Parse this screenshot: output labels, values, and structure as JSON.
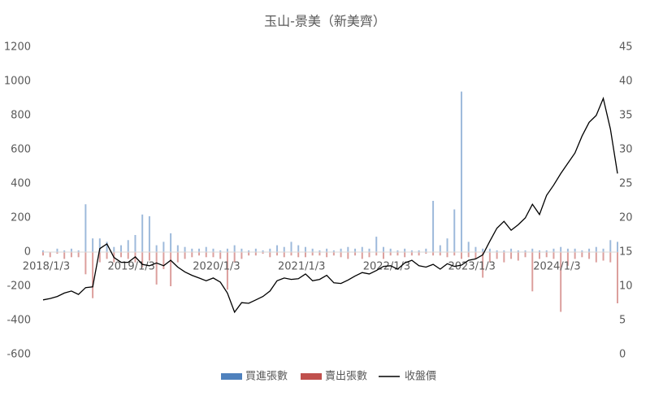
{
  "chart_data": {
    "type": "bar",
    "title": "玉山-景美（新美齊）",
    "categories": [
      "2018/1/3",
      null,
      null,
      null,
      null,
      null,
      null,
      null,
      null,
      null,
      null,
      null,
      "2019/1/3",
      null,
      null,
      null,
      null,
      null,
      null,
      null,
      null,
      null,
      null,
      null,
      "2020/1/3",
      null,
      null,
      null,
      null,
      null,
      null,
      null,
      null,
      null,
      null,
      null,
      "2021/1/3",
      null,
      null,
      null,
      null,
      null,
      null,
      null,
      null,
      null,
      null,
      null,
      "2022/1/3",
      null,
      null,
      null,
      null,
      null,
      null,
      null,
      null,
      null,
      null,
      null,
      "2023/1/3",
      null,
      null,
      null,
      null,
      null,
      null,
      null,
      null,
      null,
      null,
      null,
      "2024/1/3",
      null,
      null,
      null,
      null,
      null,
      null,
      null,
      null,
      null
    ],
    "series": [
      {
        "name": "買進張數",
        "color": "#4f81bd",
        "type": "bar",
        "values": [
          10,
          0,
          20,
          10,
          20,
          10,
          280,
          80,
          80,
          60,
          30,
          40,
          70,
          100,
          220,
          210,
          40,
          60,
          110,
          40,
          30,
          20,
          20,
          30,
          20,
          10,
          20,
          40,
          20,
          10,
          20,
          10,
          20,
          40,
          30,
          60,
          40,
          30,
          20,
          10,
          20,
          10,
          20,
          30,
          20,
          30,
          20,
          90,
          30,
          20,
          10,
          20,
          10,
          10,
          20,
          300,
          40,
          80,
          250,
          940,
          60,
          30,
          20,
          20,
          10,
          10,
          20,
          10,
          10,
          20,
          10,
          10,
          20,
          30,
          20,
          20,
          10,
          20,
          30,
          20,
          70,
          60
        ]
      },
      {
        "name": "賣出張數",
        "color": "#c0504d",
        "type": "bar",
        "values": [
          -20,
          -30,
          -10,
          -40,
          -30,
          -30,
          -130,
          -270,
          -60,
          -40,
          -60,
          -30,
          -40,
          -60,
          -90,
          -50,
          -190,
          -100,
          -200,
          -60,
          -40,
          -30,
          -20,
          -30,
          -30,
          -40,
          -220,
          -60,
          -40,
          -20,
          -20,
          -10,
          -30,
          -20,
          -30,
          -20,
          -30,
          -30,
          -20,
          -20,
          -30,
          -20,
          -30,
          -40,
          -20,
          -40,
          -30,
          -20,
          -40,
          -20,
          -20,
          -30,
          -20,
          -20,
          -10,
          -20,
          -20,
          -30,
          -20,
          -40,
          -30,
          -40,
          -150,
          -60,
          -40,
          -60,
          -40,
          -50,
          -30,
          -230,
          -40,
          -30,
          -40,
          -350,
          -80,
          -40,
          -30,
          -40,
          -60,
          -50,
          -60,
          -300
        ]
      },
      {
        "name": "收盤價",
        "color": "#000000",
        "type": "line",
        "axis": "y2",
        "values": [
          8.0,
          8.2,
          8.5,
          9.0,
          9.3,
          8.8,
          9.8,
          9.9,
          15.5,
          16.2,
          14.2,
          13.5,
          13.5,
          14.3,
          13.2,
          13.0,
          13.4,
          13.0,
          13.8,
          12.8,
          12.1,
          11.6,
          11.2,
          10.8,
          11.2,
          10.6,
          9.0,
          6.2,
          7.6,
          7.5,
          8.0,
          8.5,
          9.3,
          10.8,
          11.2,
          11.0,
          11.1,
          11.8,
          10.8,
          11.0,
          11.6,
          10.5,
          10.4,
          10.9,
          11.5,
          12.0,
          11.8,
          12.3,
          12.9,
          13.0,
          12.5,
          13.4,
          13.8,
          13.0,
          12.8,
          13.2,
          12.5,
          13.3,
          12.9,
          13.1,
          13.8,
          14.0,
          14.6,
          16.6,
          18.5,
          19.5,
          18.2,
          19.0,
          20.0,
          22.0,
          20.5,
          23.3,
          24.8,
          26.5,
          28.0,
          29.5,
          32.0,
          34.0,
          35.0,
          37.5,
          33.0,
          26.5
        ]
      }
    ],
    "ylim": [
      -600,
      1200
    ],
    "yticks": [
      -600,
      -400,
      -200,
      0,
      200,
      400,
      600,
      800,
      1000,
      1200
    ],
    "y2lim": [
      0,
      45
    ],
    "y2ticks": [
      0,
      5,
      10,
      15,
      20,
      25,
      30,
      35,
      40,
      45
    ],
    "grid": false
  }
}
